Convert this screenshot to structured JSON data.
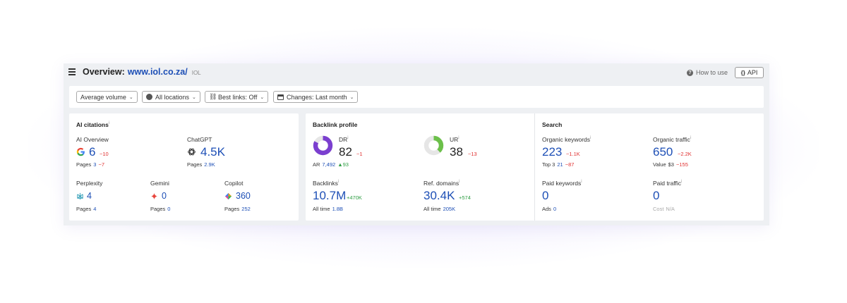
{
  "header": {
    "title": "Overview:",
    "domain": "www.iol.co.za/",
    "tag": "IOL",
    "how_to_use": "How to use",
    "api": "API"
  },
  "filters": [
    {
      "label": "Average volume"
    },
    {
      "label": "All locations"
    },
    {
      "label": "Best links: Off"
    },
    {
      "label": "Changes: Last month"
    }
  ],
  "ai_citations": {
    "title": "AI citations",
    "ai_overview": {
      "label": "AI Overview",
      "value": "6",
      "delta": "−10",
      "sub_label": "Pages",
      "sub_value": "3",
      "sub_delta": "−7"
    },
    "chatgpt": {
      "label": "ChatGPT",
      "value": "4.5K",
      "sub_label": "Pages",
      "sub_value": "2.9K"
    },
    "perplexity": {
      "label": "Perplexity",
      "value": "4",
      "sub_label": "Pages",
      "sub_value": "4"
    },
    "gemini": {
      "label": "Gemini",
      "value": "0",
      "sub_label": "Pages",
      "sub_value": "0"
    },
    "copilot": {
      "label": "Copilot",
      "value": "360",
      "sub_label": "Pages",
      "sub_value": "252"
    }
  },
  "backlink_profile": {
    "title": "Backlink profile",
    "dr": {
      "label": "DR",
      "value": "82",
      "delta": "−1",
      "ar_label": "AR",
      "ar_value": "7,492",
      "ar_delta": "▲93",
      "ring_fraction": 0.82,
      "ring_color": "#7b3fcf"
    },
    "ur": {
      "label": "UR",
      "value": "38",
      "delta": "−13",
      "ring_fraction": 0.38,
      "ring_color": "#6cc04a"
    },
    "backlinks": {
      "label": "Backlinks",
      "value": "10.7M",
      "delta": "+470K",
      "sub_label": "All time",
      "sub_value": "1.8B"
    },
    "ref_domains": {
      "label": "Ref. domains",
      "value": "30.4K",
      "delta": "+574",
      "sub_label": "All time",
      "sub_value": "205K"
    }
  },
  "search": {
    "title": "Search",
    "organic_keywords": {
      "label": "Organic keywords",
      "value": "223",
      "delta": "−1.1K",
      "sub_label": "Top 3",
      "sub_value": "21",
      "sub_delta": "−87"
    },
    "organic_traffic": {
      "label": "Organic traffic",
      "value": "650",
      "delta": "−2.2K",
      "sub_label": "Value",
      "sub_value": "$3",
      "sub_delta": "−155"
    },
    "paid_keywords": {
      "label": "Paid keywords",
      "value": "0",
      "sub_label": "Ads",
      "sub_value": "0"
    },
    "paid_traffic": {
      "label": "Paid traffic",
      "value": "0",
      "sub_label": "Cost",
      "sub_value": "N/A"
    }
  },
  "colors": {
    "link_blue": "#1d4fb6",
    "negative": "#e03131",
    "positive": "#2f9e44"
  }
}
